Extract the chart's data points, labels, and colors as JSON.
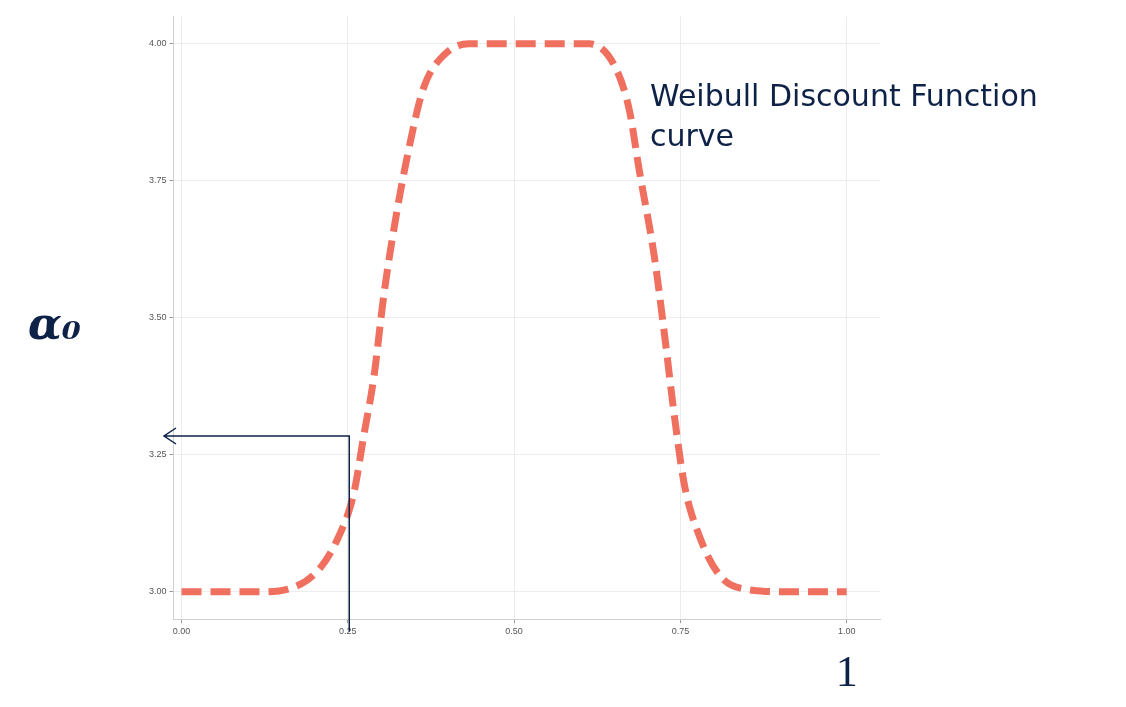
{
  "chart_data": {
    "type": "line",
    "xlabel": "1",
    "ylabel": "α₀",
    "x": [
      0,
      0.026,
      0.116,
      0.16,
      0.206,
      0.236,
      0.259,
      0.274,
      0.289,
      0.304,
      0.319,
      0.342,
      0.364,
      0.395,
      0.432,
      0.613,
      0.651,
      0.673,
      0.688,
      0.711,
      0.726,
      0.741,
      0.756,
      0.779,
      0.809,
      0.846,
      0.914,
      1
    ],
    "series": [
      {
        "color": "#f07060",
        "values": [
          3.0,
          3.0,
          3.0,
          3.005,
          3.04,
          3.1,
          3.18,
          3.285,
          3.39,
          3.54,
          3.66,
          3.81,
          3.92,
          3.98,
          4.0,
          4.0,
          3.96,
          3.88,
          3.77,
          3.61,
          3.47,
          3.32,
          3.195,
          3.1,
          3.03,
          3.005,
          3.0,
          3.0
        ]
      }
    ],
    "xlim": [
      -0.012,
      1.05
    ],
    "ylim": [
      2.95,
      4.05
    ],
    "xticks": [
      {
        "value": 0,
        "label": "0.00"
      },
      {
        "value": 0.25,
        "label": "0.25"
      },
      {
        "value": 0.5,
        "label": "0.50"
      },
      {
        "value": 0.75,
        "label": "0.75"
      },
      {
        "value": 1,
        "label": "1.00"
      }
    ],
    "yticks": [
      {
        "value": 3,
        "label": "3.00"
      },
      {
        "value": 3.25,
        "label": "3.25"
      },
      {
        "value": 3.5,
        "label": "3.50"
      },
      {
        "value": 3.75,
        "label": "3.75"
      },
      {
        "value": 4,
        "label": "4.00"
      }
    ],
    "annotations": [
      "Weibull Discount Function curve"
    ],
    "grid": true,
    "legend": false,
    "marker": "none",
    "line_style": "dashed"
  }
}
